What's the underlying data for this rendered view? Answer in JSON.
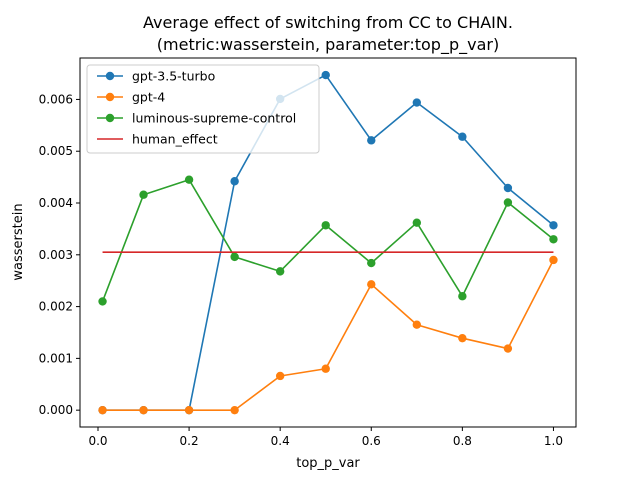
{
  "chart_data": {
    "type": "line",
    "title": "Average effect of switching from CC to CHAIN.",
    "subtitle": "(metric:wasserstein, parameter:top_p_var)",
    "xlabel": "top_p_var",
    "ylabel": "wasserstein",
    "xlim": [
      -0.0395,
      1.0495
    ],
    "ylim": [
      -0.000325,
      0.0068
    ],
    "xticks": [
      "0.0",
      "0.2",
      "0.4",
      "0.6",
      "0.8",
      "1.0"
    ],
    "yticks": [
      "0.000",
      "0.001",
      "0.002",
      "0.003",
      "0.004",
      "0.005",
      "0.006"
    ],
    "grid": false,
    "legend_position": "upper-left",
    "x": [
      0.01,
      0.1,
      0.2,
      0.3,
      0.4,
      0.5,
      0.6,
      0.7,
      0.8,
      0.9,
      1.0
    ],
    "series": [
      {
        "name": "gpt-3.5-turbo",
        "color": "#1f77b4",
        "marker": "circle",
        "values": [
          0.0,
          0.0,
          0.0,
          0.00442,
          0.00601,
          0.00647,
          0.00521,
          0.00594,
          0.00528,
          0.00429,
          0.00357
        ]
      },
      {
        "name": "gpt-4",
        "color": "#ff7f0e",
        "marker": "circle",
        "values": [
          0.0,
          0.0,
          0.0,
          0.0,
          0.00066,
          0.0008,
          0.00243,
          0.00165,
          0.00139,
          0.00119,
          0.0029
        ]
      },
      {
        "name": "luminous-supreme-control",
        "color": "#2ca02c",
        "marker": "circle",
        "values": [
          0.0021,
          0.00416,
          0.00445,
          0.00296,
          0.00268,
          0.00357,
          0.00284,
          0.00362,
          0.0022,
          0.00401,
          0.0033
        ]
      },
      {
        "name": "human_effect",
        "color": "#d62728",
        "marker": "none",
        "values": [
          0.00305,
          0.00305,
          0.00305,
          0.00305,
          0.00305,
          0.00305,
          0.00305,
          0.00305,
          0.00305,
          0.00305,
          0.00305
        ]
      }
    ]
  }
}
